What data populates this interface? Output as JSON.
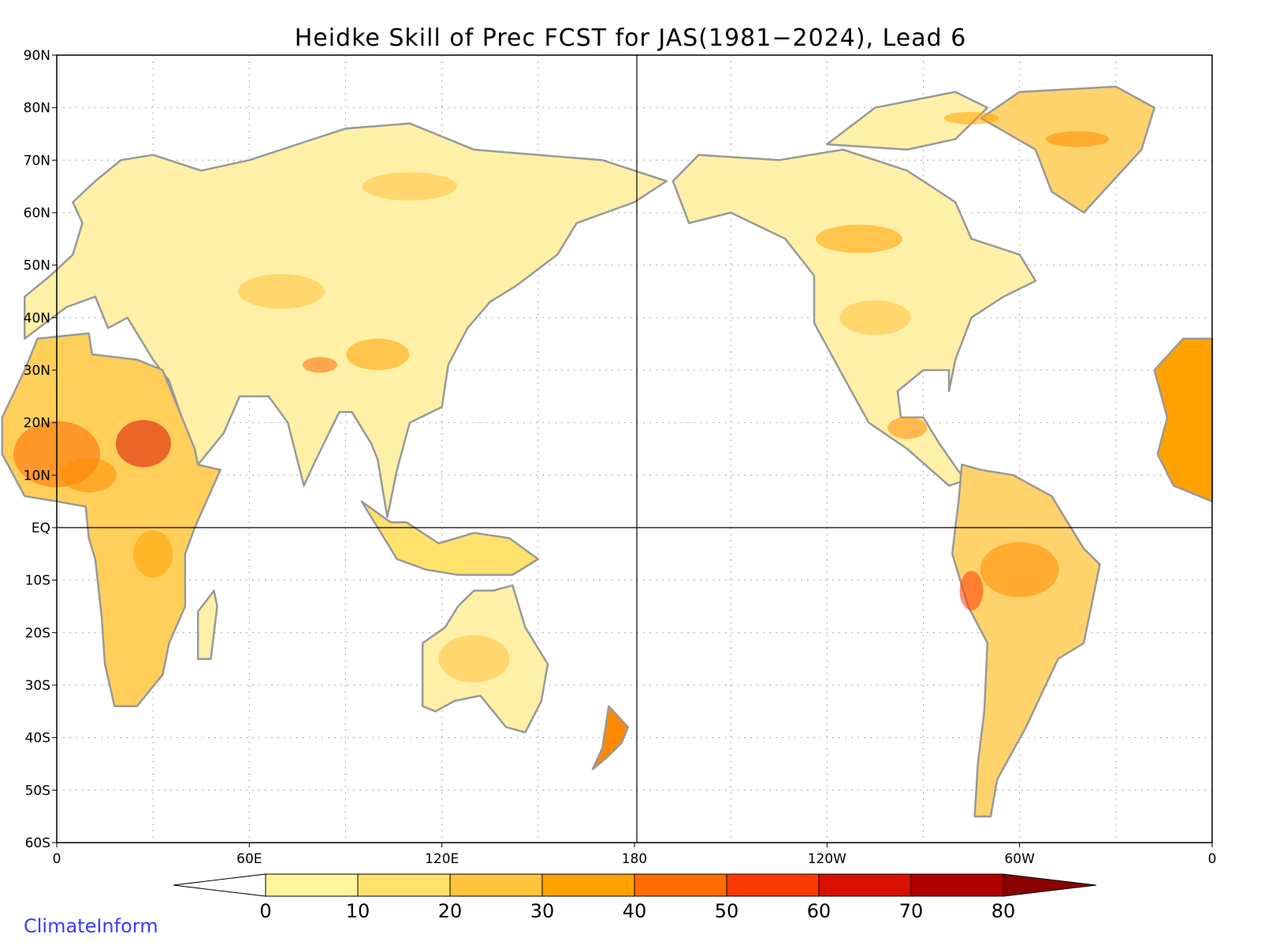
{
  "title": "Heidke Skill of Prec FCST for JAS(1981−2024), Lead 6",
  "credit": "ClimateInform",
  "map": {
    "projection": "plate-carree",
    "center_lon": 180,
    "lat_range": [
      -60,
      90
    ],
    "lon_range": [
      0,
      360
    ],
    "lat_ticks": [
      "90N",
      "80N",
      "70N",
      "60N",
      "50N",
      "40N",
      "30N",
      "20N",
      "10N",
      "EQ",
      "10S",
      "20S",
      "30S",
      "40S",
      "50S",
      "60S"
    ],
    "lon_ticks": [
      "0",
      "60E",
      "120E",
      "180",
      "120W",
      "60W",
      "0"
    ],
    "grid": "dotted",
    "coastline_color": "#999999",
    "lakes_color": "#000000"
  },
  "colorbar": {
    "levels": [
      "0",
      "10",
      "20",
      "30",
      "40",
      "50",
      "60",
      "70",
      "80"
    ],
    "colors": [
      "#ffffff",
      "#fff59d",
      "#ffe26b",
      "#ffc23c",
      "#ffa200",
      "#ff6c00",
      "#ff3a00",
      "#d81100",
      "#b10000",
      "#8a0000"
    ]
  }
}
